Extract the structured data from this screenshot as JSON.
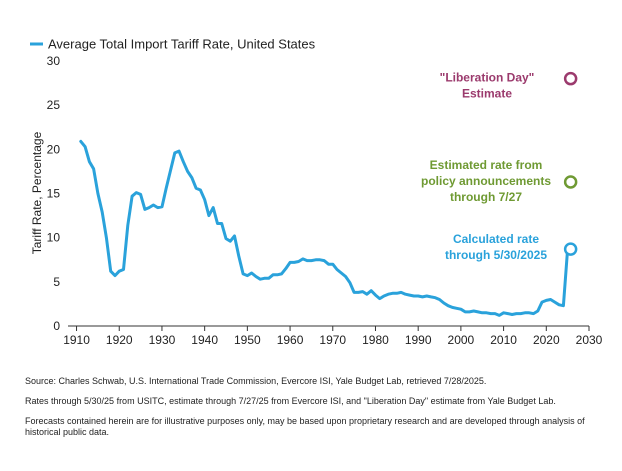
{
  "chart_data": {
    "type": "line",
    "legend": {
      "label": "Average Total Import Tariff Rate, United States",
      "placement": "top-left"
    },
    "ylabel": "Tariff Rate, Percentage",
    "xlabel": "",
    "xlim": [
      1908,
      2030
    ],
    "ylim": [
      0,
      30
    ],
    "x_ticks": [
      1910,
      1920,
      1930,
      1940,
      1950,
      1960,
      1970,
      1980,
      1990,
      2000,
      2010,
      2020,
      2030
    ],
    "y_ticks": [
      0,
      5,
      10,
      15,
      20,
      25,
      30
    ],
    "grid": false,
    "colors": {
      "series": "#2aa2db",
      "liberation": "#9b3a6d",
      "estimated": "#6f9a33",
      "calculated": "#2aa2db",
      "axis": "#333333"
    },
    "series": [
      {
        "x": [
          1911,
          1912,
          1913,
          1914,
          1915,
          1916,
          1917,
          1918,
          1919,
          1920,
          1921,
          1922,
          1923,
          1924,
          1925,
          1926,
          1927,
          1928,
          1929,
          1930,
          1931,
          1932,
          1933,
          1934,
          1935,
          1936,
          1937,
          1938,
          1939,
          1940,
          1941,
          1942,
          1943,
          1944,
          1945,
          1946,
          1947,
          1948,
          1949,
          1950,
          1951,
          1952,
          1953,
          1954,
          1955,
          1956,
          1957,
          1958,
          1959,
          1960,
          1961,
          1962,
          1963,
          1964,
          1965,
          1966,
          1967,
          1968,
          1969,
          1970,
          1971,
          1972,
          1973,
          1974,
          1975,
          1976,
          1977,
          1978,
          1979,
          1980,
          1981,
          1982,
          1983,
          1984,
          1985,
          1986,
          1987,
          1988,
          1989,
          1990,
          1991,
          1992,
          1993,
          1994,
          1995,
          1996,
          1997,
          1998,
          1999,
          2000,
          2001,
          2002,
          2003,
          2004,
          2005,
          2006,
          2007,
          2008,
          2009,
          2010,
          2011,
          2012,
          2013,
          2014,
          2015,
          2016,
          2017,
          2018,
          2019,
          2020,
          2021,
          2022,
          2023,
          2024,
          2025
        ],
        "y": [
          20.9,
          20.3,
          18.6,
          17.8,
          15.0,
          12.9,
          10.0,
          6.2,
          5.7,
          6.2,
          6.4,
          11.4,
          14.7,
          15.1,
          14.9,
          13.2,
          13.4,
          13.7,
          13.4,
          13.5,
          15.6,
          17.6,
          19.6,
          19.8,
          18.6,
          17.5,
          16.8,
          15.6,
          15.4,
          14.3,
          12.5,
          13.4,
          11.6,
          11.6,
          9.9,
          9.6,
          10.2,
          7.9,
          5.9,
          5.7,
          6.0,
          5.6,
          5.3,
          5.4,
          5.4,
          5.8,
          5.8,
          5.9,
          6.5,
          7.2,
          7.2,
          7.3,
          7.6,
          7.4,
          7.4,
          7.5,
          7.5,
          7.4,
          7.0,
          7.0,
          6.4,
          6.0,
          5.6,
          4.9,
          3.8,
          3.8,
          3.9,
          3.6,
          4.0,
          3.5,
          3.1,
          3.4,
          3.6,
          3.7,
          3.7,
          3.8,
          3.6,
          3.5,
          3.4,
          3.4,
          3.3,
          3.4,
          3.3,
          3.2,
          3.0,
          2.6,
          2.3,
          2.1,
          2.0,
          1.9,
          1.6,
          1.6,
          1.7,
          1.6,
          1.5,
          1.5,
          1.4,
          1.4,
          1.2,
          1.5,
          1.4,
          1.3,
          1.4,
          1.4,
          1.5,
          1.5,
          1.4,
          1.7,
          2.7,
          2.9,
          3.0,
          2.7,
          2.4,
          2.3,
          8.7
        ]
      }
    ],
    "annotations": [
      {
        "label": "\"Liberation Day\"\nEstimate",
        "x": 2025.7,
        "y": 28.0
      },
      {
        "label": "Estimated rate from\npolicy announcements\nthrough 7/27",
        "x": 2025.7,
        "y": 16.3
      },
      {
        "label": "Calculated rate\nthrough 5/30/2025",
        "x": 2025.7,
        "y": 8.7
      }
    ]
  },
  "footnotes": {
    "source": "Source: Charles Schwab, U.S. International Trade Commission, Evercore ISI, Yale Budget Lab, retrieved 7/28/2025.",
    "rates": "Rates through 5/30/25 from USITC, estimate through 7/27/25 from Evercore ISI, and \"Liberation Day\" estimate from Yale Budget Lab.",
    "disclaimer": "Forecasts contained herein are for illustrative purposes only, may be based upon proprietary research and are developed through analysis of historical public data."
  }
}
